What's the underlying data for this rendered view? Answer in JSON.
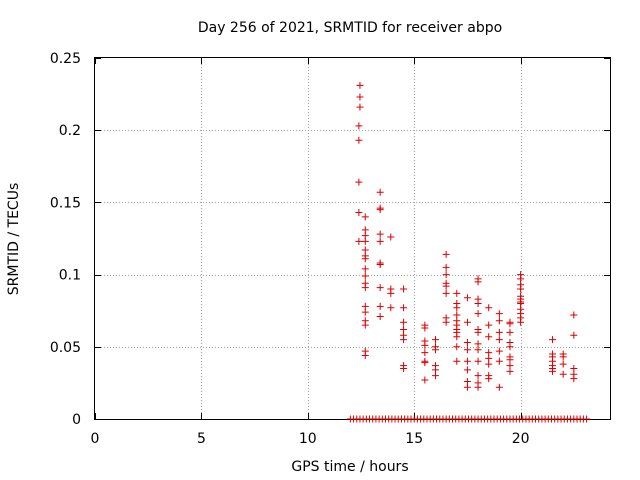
{
  "chart_data": {
    "type": "scatter",
    "title": "Day 256 of 2021, SRMTID for receiver abpo",
    "xlabel": "GPS time / hours",
    "ylabel": "SRMTID / TECUs",
    "xlim": [
      0,
      24.2
    ],
    "ylim": [
      0,
      0.25
    ],
    "x_ticks": [
      0,
      5,
      10,
      15,
      20
    ],
    "x_tick_labels": [
      "0",
      "5",
      "10",
      "15",
      "20"
    ],
    "y_ticks": [
      0,
      0.05,
      0.1,
      0.15,
      0.2,
      0.25
    ],
    "y_tick_labels": [
      "0",
      "0.05",
      "0.1",
      "0.15",
      "0.2",
      "0.25"
    ],
    "grid": true,
    "marker": "+",
    "series": [
      {
        "name": "SRMTID",
        "color": "#dd0000",
        "points": [
          [
            12.45,
            0.231
          ],
          [
            12.45,
            0.223
          ],
          [
            12.45,
            0.216
          ],
          [
            12.4,
            0.203
          ],
          [
            12.4,
            0.193
          ],
          [
            12.4,
            0.164
          ],
          [
            12.4,
            0.143
          ],
          [
            12.4,
            0.123
          ],
          [
            12.7,
            0.14
          ],
          [
            12.7,
            0.131
          ],
          [
            12.7,
            0.127
          ],
          [
            12.7,
            0.123
          ],
          [
            12.7,
            0.117
          ],
          [
            12.7,
            0.113
          ],
          [
            12.7,
            0.111
          ],
          [
            12.7,
            0.104
          ],
          [
            12.7,
            0.099
          ],
          [
            12.7,
            0.094
          ],
          [
            12.7,
            0.091
          ],
          [
            12.7,
            0.078
          ],
          [
            12.7,
            0.074
          ],
          [
            12.7,
            0.068
          ],
          [
            12.7,
            0.065
          ],
          [
            12.7,
            0.047
          ],
          [
            12.7,
            0.044
          ],
          [
            13.4,
            0.157
          ],
          [
            13.4,
            0.146
          ],
          [
            13.4,
            0.145
          ],
          [
            13.4,
            0.128
          ],
          [
            13.4,
            0.123
          ],
          [
            13.4,
            0.108
          ],
          [
            13.4,
            0.107
          ],
          [
            13.4,
            0.091
          ],
          [
            13.4,
            0.078
          ],
          [
            13.4,
            0.071
          ],
          [
            13.9,
            0.126
          ],
          [
            13.9,
            0.09
          ],
          [
            13.9,
            0.087
          ],
          [
            13.9,
            0.077
          ],
          [
            14.5,
            0.09
          ],
          [
            14.5,
            0.077
          ],
          [
            14.5,
            0.067
          ],
          [
            14.5,
            0.062
          ],
          [
            14.5,
            0.058
          ],
          [
            14.5,
            0.055
          ],
          [
            14.5,
            0.037
          ],
          [
            14.5,
            0.035
          ],
          [
            15.5,
            0.065
          ],
          [
            15.5,
            0.063
          ],
          [
            15.5,
            0.054
          ],
          [
            15.5,
            0.051
          ],
          [
            15.5,
            0.046
          ],
          [
            15.5,
            0.04
          ],
          [
            15.5,
            0.039
          ],
          [
            15.5,
            0.027
          ],
          [
            16.0,
            0.055
          ],
          [
            16.0,
            0.05
          ],
          [
            16.0,
            0.048
          ],
          [
            16.0,
            0.037
          ],
          [
            16.0,
            0.034
          ],
          [
            16.0,
            0.03
          ],
          [
            16.5,
            0.114
          ],
          [
            16.5,
            0.105
          ],
          [
            16.5,
            0.1
          ],
          [
            16.5,
            0.094
          ],
          [
            16.5,
            0.092
          ],
          [
            16.5,
            0.087
          ],
          [
            16.5,
            0.07
          ],
          [
            16.5,
            0.067
          ],
          [
            17.0,
            0.087
          ],
          [
            17.0,
            0.08
          ],
          [
            17.0,
            0.077
          ],
          [
            17.0,
            0.072
          ],
          [
            17.0,
            0.068
          ],
          [
            17.0,
            0.065
          ],
          [
            17.0,
            0.062
          ],
          [
            17.0,
            0.06
          ],
          [
            17.0,
            0.057
          ],
          [
            17.0,
            0.05
          ],
          [
            17.0,
            0.04
          ],
          [
            17.5,
            0.084
          ],
          [
            17.5,
            0.067
          ],
          [
            17.5,
            0.053
          ],
          [
            17.5,
            0.048
          ],
          [
            17.5,
            0.04
          ],
          [
            17.5,
            0.034
          ],
          [
            17.5,
            0.026
          ],
          [
            17.5,
            0.022
          ],
          [
            18.0,
            0.097
          ],
          [
            18.0,
            0.095
          ],
          [
            18.0,
            0.083
          ],
          [
            18.0,
            0.08
          ],
          [
            18.0,
            0.073
          ],
          [
            18.0,
            0.062
          ],
          [
            18.0,
            0.06
          ],
          [
            18.0,
            0.052
          ],
          [
            18.0,
            0.048
          ],
          [
            18.0,
            0.04
          ],
          [
            18.0,
            0.03
          ],
          [
            18.0,
            0.025
          ],
          [
            18.0,
            0.022
          ],
          [
            18.5,
            0.077
          ],
          [
            18.5,
            0.065
          ],
          [
            18.5,
            0.057
          ],
          [
            18.5,
            0.046
          ],
          [
            18.5,
            0.042
          ],
          [
            18.5,
            0.038
          ],
          [
            18.5,
            0.03
          ],
          [
            18.5,
            0.028
          ],
          [
            19.0,
            0.073
          ],
          [
            19.0,
            0.068
          ],
          [
            19.0,
            0.06
          ],
          [
            19.0,
            0.055
          ],
          [
            19.0,
            0.047
          ],
          [
            19.0,
            0.04
          ],
          [
            19.0,
            0.022
          ],
          [
            19.5,
            0.067
          ],
          [
            19.5,
            0.066
          ],
          [
            19.5,
            0.06
          ],
          [
            19.5,
            0.053
          ],
          [
            19.5,
            0.05
          ],
          [
            19.5,
            0.043
          ],
          [
            19.5,
            0.041
          ],
          [
            19.5,
            0.037
          ],
          [
            19.5,
            0.033
          ],
          [
            20.0,
            0.1
          ],
          [
            20.0,
            0.097
          ],
          [
            20.0,
            0.093
          ],
          [
            20.0,
            0.09
          ],
          [
            20.0,
            0.085
          ],
          [
            20.0,
            0.083
          ],
          [
            20.0,
            0.081
          ],
          [
            20.0,
            0.08
          ],
          [
            20.0,
            0.076
          ],
          [
            20.0,
            0.073
          ],
          [
            20.0,
            0.07
          ],
          [
            20.0,
            0.067
          ],
          [
            21.5,
            0.055
          ],
          [
            21.5,
            0.045
          ],
          [
            21.5,
            0.043
          ],
          [
            21.5,
            0.04
          ],
          [
            21.5,
            0.037
          ],
          [
            21.5,
            0.035
          ],
          [
            21.5,
            0.033
          ],
          [
            22.0,
            0.045
          ],
          [
            22.0,
            0.043
          ],
          [
            22.0,
            0.038
          ],
          [
            22.0,
            0.031
          ],
          [
            22.5,
            0.072
          ],
          [
            22.5,
            0.058
          ],
          [
            22.5,
            0.035
          ],
          [
            22.5,
            0.031
          ],
          [
            22.5,
            0.028
          ]
        ]
      }
    ],
    "baseline_series": {
      "name": "SRMTID zero values",
      "y": 0,
      "x": [
        12.0,
        12.15,
        12.3,
        12.45,
        12.6,
        12.75,
        12.9,
        13.05,
        13.2,
        13.35,
        13.5,
        13.65,
        13.8,
        13.95,
        14.1,
        14.25,
        14.4,
        14.55,
        14.7,
        14.85,
        15.0,
        15.15,
        15.3,
        15.45,
        15.6,
        15.75,
        15.9,
        16.05,
        16.2,
        16.35,
        16.5,
        16.65,
        16.8,
        16.95,
        17.1,
        17.25,
        17.4,
        17.55,
        17.7,
        17.85,
        18.0,
        18.15,
        18.3,
        18.45,
        18.6,
        18.75,
        18.9,
        19.05,
        19.2,
        19.35,
        19.5,
        19.65,
        19.8,
        19.95,
        20.1,
        20.25,
        20.4,
        20.55,
        20.7,
        20.85,
        21.0,
        21.15,
        21.3,
        21.45,
        21.6,
        21.75,
        21.9,
        22.05,
        22.2,
        22.35,
        22.5,
        22.65,
        22.8,
        22.95,
        23.1
      ]
    }
  }
}
